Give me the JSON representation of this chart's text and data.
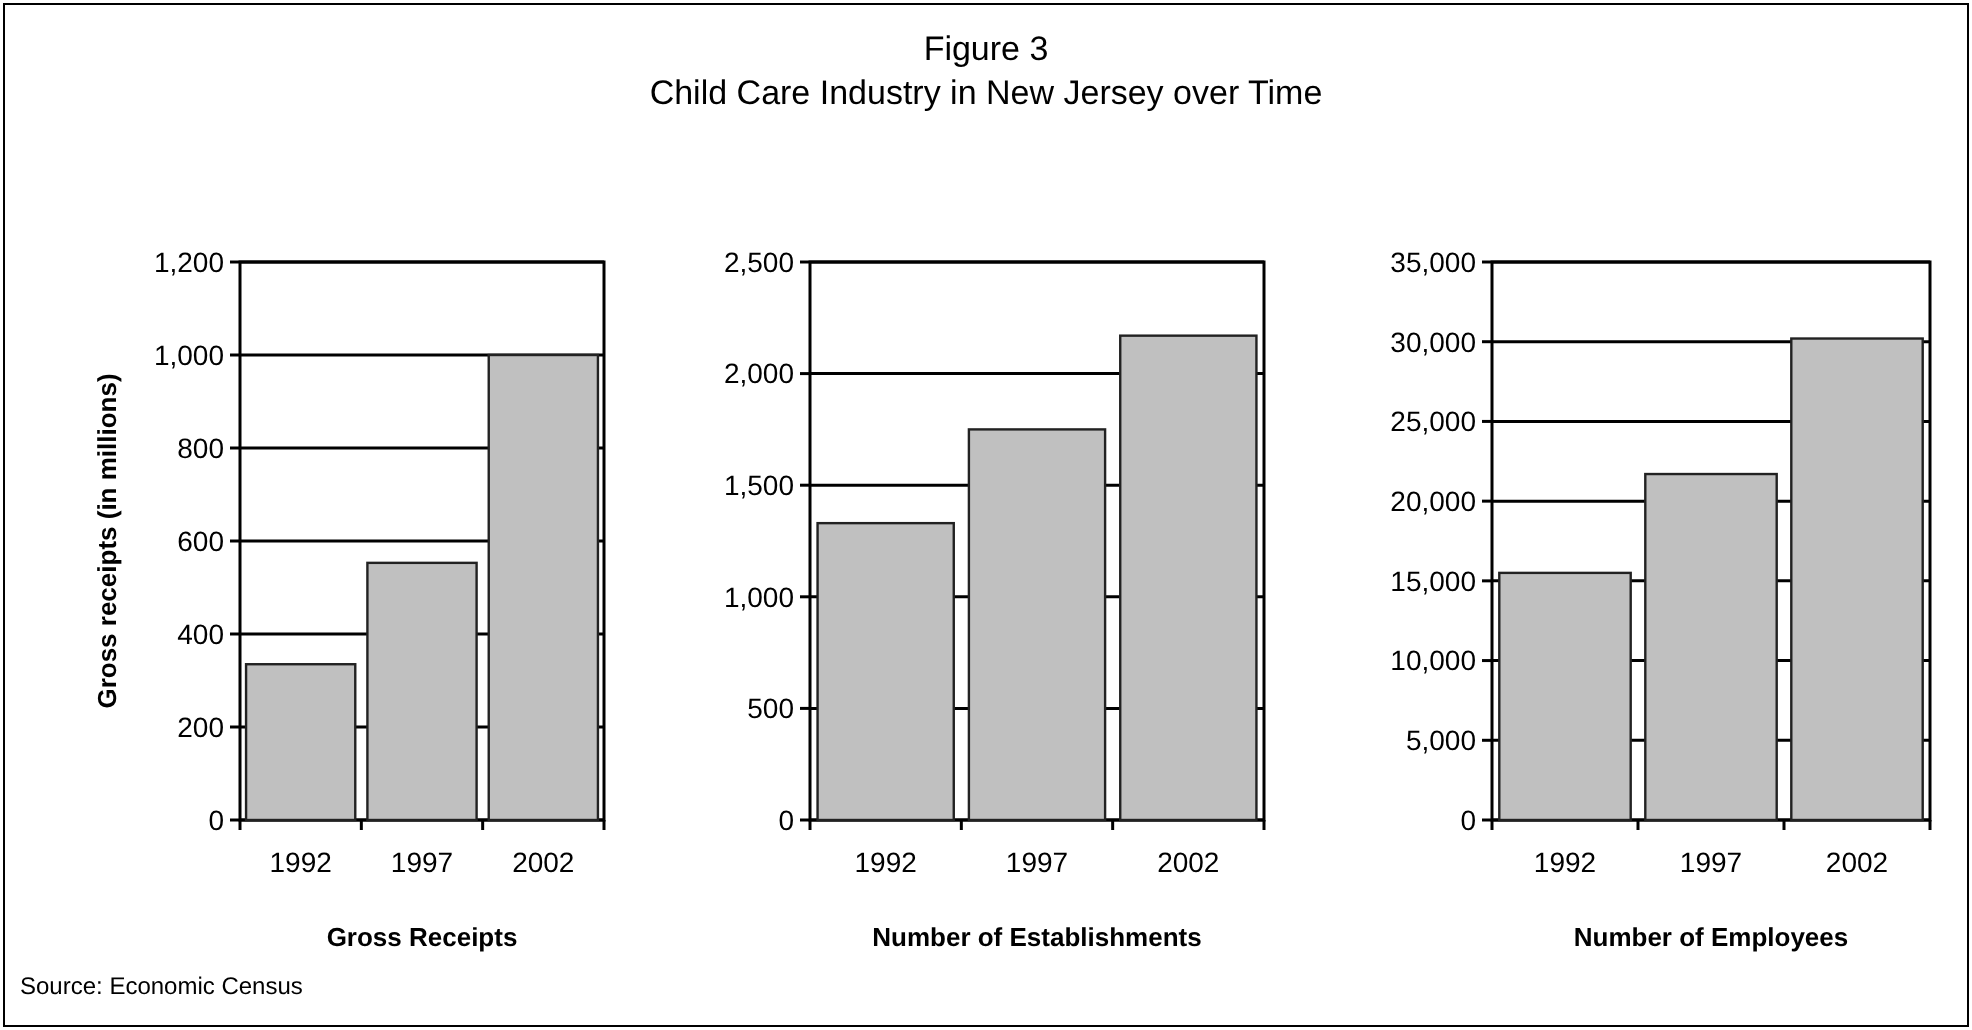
{
  "chart_data": [
    {
      "type": "bar",
      "annotations": [
        "Source: Economic Census"
      ],
      "xlabel": "Gross Receipts",
      "ylabel": "Gross receipts (in millions)",
      "categories": [
        "1992",
        "1997",
        "2002"
      ],
      "values": [
        335,
        553,
        1000
      ],
      "color": "#c0c0c0",
      "ylim": [
        0,
        1200
      ],
      "yticks": [
        0,
        200,
        400,
        600,
        800,
        {
          "value": 1000,
          "label": "1,000"
        },
        {
          "value": 1200,
          "label": "1,200"
        }
      ],
      "grid": "y"
    },
    {
      "type": "bar",
      "title": "Figure 3",
      "subtitle": "Child Care Industry in New Jersey over Time",
      "xlabel": "Number of Establishments",
      "categories": [
        "1992",
        "1997",
        "2002"
      ],
      "values": [
        1330,
        1750,
        2170
      ],
      "color": "#c0c0c0",
      "ylim": [
        0,
        2500
      ],
      "yticks": [
        0,
        500,
        {
          "value": 1000,
          "label": "1,000"
        },
        {
          "value": 1500,
          "label": "1,500"
        },
        {
          "value": 2000,
          "label": "2,000"
        },
        {
          "value": 2500,
          "label": "2,500"
        }
      ],
      "grid": "y"
    },
    {
      "type": "bar",
      "xlabel": "Number of Employees",
      "categories": [
        "1992",
        "1997",
        "2002"
      ],
      "values": [
        15500,
        21700,
        30200
      ],
      "color": "#c0c0c0",
      "ylim": [
        0,
        35000
      ],
      "yticks": [
        0,
        {
          "value": 5000,
          "label": "5,000"
        },
        {
          "value": 10000,
          "label": "10,000"
        },
        {
          "value": 15000,
          "label": "15,000"
        },
        {
          "value": 20000,
          "label": "20,000"
        },
        {
          "value": 25000,
          "label": "25,000"
        },
        {
          "value": 30000,
          "label": "30,000"
        },
        {
          "value": 35000,
          "label": "35,000"
        }
      ],
      "grid": "y"
    }
  ]
}
